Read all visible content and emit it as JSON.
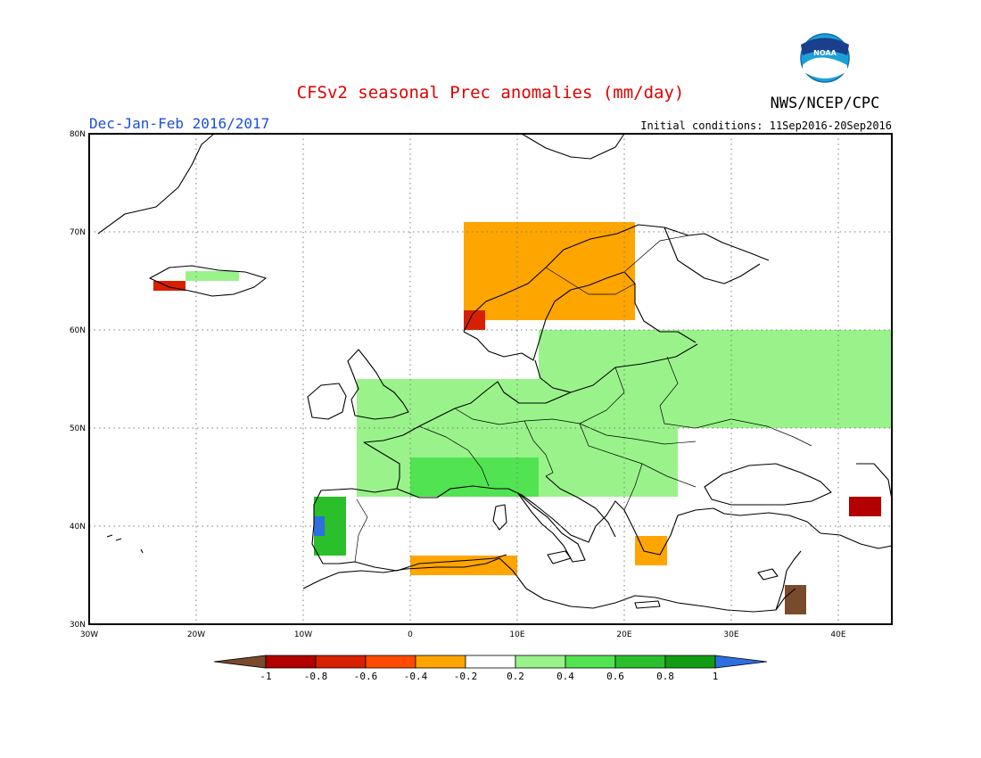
{
  "header": {
    "title": "CFSv2 seasonal Prec anomalies (mm/day)",
    "season": "Dec-Jan-Feb 2016/2017",
    "initial_conditions": "Initial conditions: 11Sep2016-20Sep2016",
    "agency": "NWS/NCEP/CPC",
    "logo_text": "NOAA"
  },
  "colors": {
    "title": "#e00000",
    "season": "#1a4fd8",
    "land_outline": "#000000",
    "grid": "#808080"
  },
  "map": {
    "lon_range": [
      -30,
      45
    ],
    "lat_range": [
      30,
      80
    ],
    "lat_ticks": [
      {
        "value": 80,
        "label": "80N"
      },
      {
        "value": 70,
        "label": "70N"
      },
      {
        "value": 60,
        "label": "60N"
      },
      {
        "value": 50,
        "label": "50N"
      },
      {
        "value": 40,
        "label": "40N"
      },
      {
        "value": 30,
        "label": "30N"
      }
    ],
    "lon_ticks": [
      {
        "value": -30,
        "label": "30W"
      },
      {
        "value": -20,
        "label": "20W"
      },
      {
        "value": -10,
        "label": "10W"
      },
      {
        "value": 0,
        "label": "0"
      },
      {
        "value": 10,
        "label": "10E"
      },
      {
        "value": 20,
        "label": "20E"
      },
      {
        "value": 30,
        "label": "30E"
      },
      {
        "value": 40,
        "label": "40E"
      }
    ],
    "gridlines": "dotted"
  },
  "colorbar": {
    "labels": [
      "-1",
      "-0.8",
      "-0.6",
      "-0.4",
      "-0.2",
      "0.2",
      "0.4",
      "0.6",
      "0.8",
      "1"
    ],
    "bins": [
      {
        "range": "< -1",
        "color": "#7a4a2c"
      },
      {
        "range": "-1 to -0.8",
        "color": "#b20000"
      },
      {
        "range": "-0.8 to -0.6",
        "color": "#d72000"
      },
      {
        "range": "-0.6 to -0.4",
        "color": "#ff4a00"
      },
      {
        "range": "-0.4 to -0.2",
        "color": "#ffa500"
      },
      {
        "range": "-0.2 to 0.2",
        "color": "#ffffff"
      },
      {
        "range": "0.2 to 0.4",
        "color": "#99f38a"
      },
      {
        "range": "0.4 to 0.6",
        "color": "#52e352"
      },
      {
        "range": "0.6 to 0.8",
        "color": "#2bbf2b"
      },
      {
        "range": "0.8 to 1",
        "color": "#119d11"
      },
      {
        "range": "> 1",
        "color": "#2e6fe0"
      }
    ]
  },
  "anomaly_regions": [
    {
      "region": "Scandinavia / Russia",
      "lon": [
        12,
        45
      ],
      "lat": [
        50,
        60
      ],
      "class": "0.2 to 0.4"
    },
    {
      "region": "Western & Central Europe",
      "lon": [
        -5,
        25
      ],
      "lat": [
        43,
        55
      ],
      "class": "0.2 to 0.4"
    },
    {
      "region": "France / Alps",
      "lon": [
        0,
        12
      ],
      "lat": [
        43,
        47
      ],
      "class": "0.4 to 0.6"
    },
    {
      "region": "Portugal",
      "lon": [
        -9,
        -6
      ],
      "lat": [
        37,
        43
      ],
      "class": "0.6 to 0.8"
    },
    {
      "region": "Portugal core",
      "lon": [
        -9,
        -8
      ],
      "lat": [
        39,
        41
      ],
      "class": "> 1"
    },
    {
      "region": "Norway coast",
      "lon": [
        5,
        21
      ],
      "lat": [
        61,
        71
      ],
      "class": "-0.4 to -0.2"
    },
    {
      "region": "Norway west",
      "lon": [
        5,
        7
      ],
      "lat": [
        60,
        62
      ],
      "class": "-0.8 to -0.6"
    },
    {
      "region": "Iceland west",
      "lon": [
        -24,
        -21
      ],
      "lat": [
        64,
        65
      ],
      "class": "-0.8 to -0.6"
    },
    {
      "region": "Iceland east",
      "lon": [
        -21,
        -16
      ],
      "lat": [
        65,
        66
      ],
      "class": "0.2 to 0.4"
    },
    {
      "region": "North Africa",
      "lon": [
        0,
        10
      ],
      "lat": [
        35,
        37
      ],
      "class": "-0.4 to -0.2"
    },
    {
      "region": "Greece",
      "lon": [
        21,
        24
      ],
      "lat": [
        36,
        39
      ],
      "class": "-0.4 to -0.2"
    },
    {
      "region": "Caucasus",
      "lon": [
        41,
        44
      ],
      "lat": [
        41,
        43
      ],
      "class": "-1 to -0.8"
    },
    {
      "region": "Levant",
      "lon": [
        35,
        37
      ],
      "lat": [
        31,
        34
      ],
      "class": "< -1"
    }
  ]
}
